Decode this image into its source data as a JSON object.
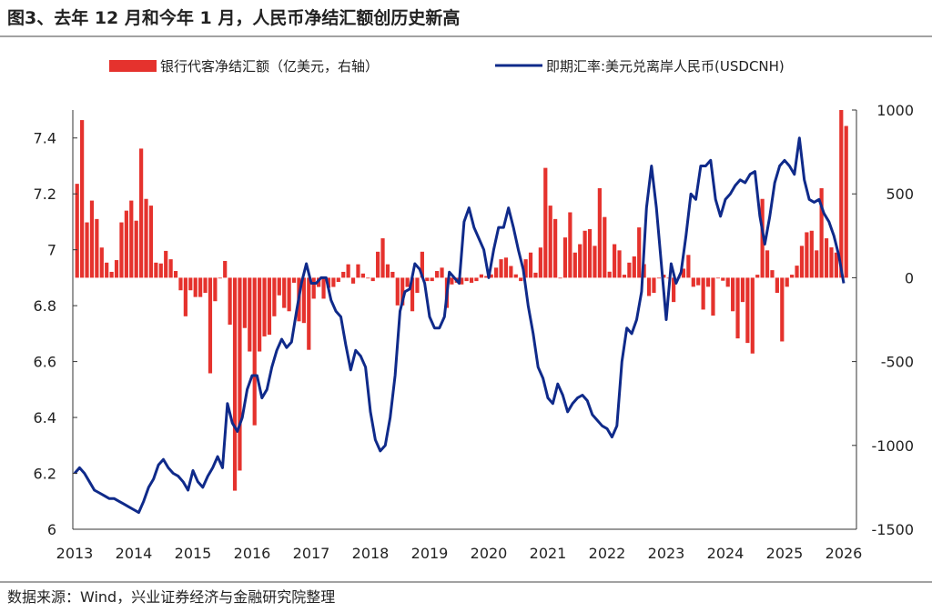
{
  "title": "图3、去年 12 月和今年 1 月，人民币净结汇额创历史新高",
  "source": "数据来源：Wind，兴业证券经济与金融研究院整理",
  "colors": {
    "bar": "#e5322d",
    "line": "#0f2a8a"
  },
  "chart_data": {
    "type": "bar+line",
    "legend_position": "top",
    "grid": false,
    "x_tick_labels": [
      "2013",
      "2014",
      "2015",
      "2016",
      "2017",
      "2018",
      "2019",
      "2020",
      "2021",
      "2022",
      "2023",
      "2024",
      "2025",
      "2026"
    ],
    "left_axis": {
      "ylim": [
        6,
        7.5
      ],
      "tick_labels": [
        "6",
        "6.2",
        "6.4",
        "6.6",
        "6.8",
        "7",
        "7.2",
        "7.4"
      ],
      "ticks": [
        6,
        6.2,
        6.4,
        6.6,
        6.8,
        7,
        7.2,
        7.4
      ]
    },
    "right_axis": {
      "ylim": [
        -1500,
        1000
      ],
      "tick_labels": [
        "-1500",
        "-1000",
        "-500",
        "0",
        "500",
        "1000"
      ],
      "ticks": [
        -1500,
        -1000,
        -500,
        0,
        500,
        1000
      ]
    },
    "series": [
      {
        "name": "银行代客净结汇额（亿美元，右轴）",
        "type": "bar",
        "axis": "right",
        "monthly_by_year": {
          "2013": [
            560,
            940,
            330,
            460,
            350,
            180,
            90,
            35,
            105,
            330,
            400,
            460
          ],
          "2014": [
            340,
            770,
            470,
            430,
            90,
            85,
            160,
            110,
            40,
            -75,
            -230,
            -75
          ],
          "2015": [
            -115,
            -115,
            -90,
            -570,
            -140,
            0,
            100,
            -280,
            -1270,
            -1150,
            -300,
            -440
          ],
          "2016": [
            -880,
            -440,
            -350,
            -340,
            -230,
            -105,
            -180,
            -200,
            -30,
            -260,
            -270,
            -430
          ],
          "2017": [
            -125,
            -55,
            -125,
            -60,
            -55,
            -25,
            35,
            80,
            -35,
            80,
            25,
            0
          ],
          "2018": [
            -20,
            155,
            235,
            80,
            35,
            -165,
            -165,
            -55,
            -200,
            -90,
            155,
            -20
          ],
          "2019": [
            -20,
            40,
            60,
            -180,
            -40,
            -30,
            -40,
            -20,
            -30,
            -20,
            20,
            10
          ],
          "2020": [
            20,
            60,
            110,
            120,
            70,
            20,
            -20,
            110,
            150,
            30,
            180,
            655
          ],
          "2021": [
            430,
            350,
            0,
            240,
            390,
            150,
            200,
            280,
            290,
            190,
            534,
            362
          ],
          "2022": [
            36,
            200,
            163,
            18,
            90,
            127,
            300,
            81,
            -109,
            -90,
            0,
            18
          ],
          "2023": [
            0,
            -145,
            0,
            54,
            136,
            -54,
            -45,
            -190,
            -54,
            -226,
            0,
            -18
          ],
          "2024": [
            -54,
            -200,
            -362,
            -145,
            -389,
            -452,
            18,
            470,
            163,
            45,
            -90,
            -380
          ],
          "2025": [
            -54,
            18,
            72,
            190,
            271,
            280,
            163,
            534,
            235,
            181,
            150,
            1000
          ],
          "2026": [
            905
          ]
        }
      },
      {
        "name": "即期汇率:美元兑离岸人民币(USDCNH)",
        "type": "line",
        "axis": "left",
        "monthly_by_year": {
          "2013": [
            6.2,
            6.22,
            6.2,
            6.17,
            6.14,
            6.13,
            6.12,
            6.11,
            6.11,
            6.1,
            6.09,
            6.08
          ],
          "2014": [
            6.07,
            6.06,
            6.1,
            6.15,
            6.18,
            6.23,
            6.25,
            6.22,
            6.2,
            6.19,
            6.17,
            6.14
          ],
          "2015": [
            6.21,
            6.17,
            6.15,
            6.19,
            6.22,
            6.26,
            6.22,
            6.45,
            6.38,
            6.35,
            6.4,
            6.5
          ],
          "2016": [
            6.55,
            6.55,
            6.47,
            6.5,
            6.58,
            6.64,
            6.68,
            6.65,
            6.67,
            6.78,
            6.88,
            6.95
          ],
          "2017": [
            6.88,
            6.88,
            6.9,
            6.9,
            6.82,
            6.78,
            6.76,
            6.66,
            6.57,
            6.64,
            6.62,
            6.58
          ],
          "2018": [
            6.42,
            6.32,
            6.28,
            6.3,
            6.4,
            6.55,
            6.78,
            6.85,
            6.86,
            6.95,
            6.93,
            6.88
          ],
          "2019": [
            6.76,
            6.72,
            6.72,
            6.76,
            6.92,
            6.9,
            6.88,
            7.1,
            7.15,
            7.08,
            7.04,
            7.0
          ],
          "2020": [
            6.9,
            7.0,
            7.08,
            7.08,
            7.15,
            7.08,
            7.0,
            6.93,
            6.8,
            6.7,
            6.58,
            6.54
          ],
          "2021": [
            6.47,
            6.45,
            6.52,
            6.48,
            6.42,
            6.45,
            6.47,
            6.48,
            6.46,
            6.41,
            6.39,
            6.37
          ],
          "2022": [
            6.36,
            6.33,
            6.37,
            6.6,
            6.72,
            6.7,
            6.75,
            6.85,
            7.15,
            7.3,
            7.15,
            6.95
          ],
          "2023": [
            6.75,
            6.95,
            6.88,
            6.92,
            7.05,
            7.2,
            7.18,
            7.3,
            7.3,
            7.32,
            7.18,
            7.12
          ],
          "2024": [
            7.18,
            7.2,
            7.23,
            7.25,
            7.24,
            7.27,
            7.28,
            7.12,
            7.02,
            7.12,
            7.24,
            7.3
          ],
          "2025": [
            7.32,
            7.3,
            7.27,
            7.4,
            7.25,
            7.18,
            7.17,
            7.18,
            7.13,
            7.1,
            7.05,
            6.98
          ],
          "2026": [
            6.88
          ]
        }
      }
    ]
  }
}
